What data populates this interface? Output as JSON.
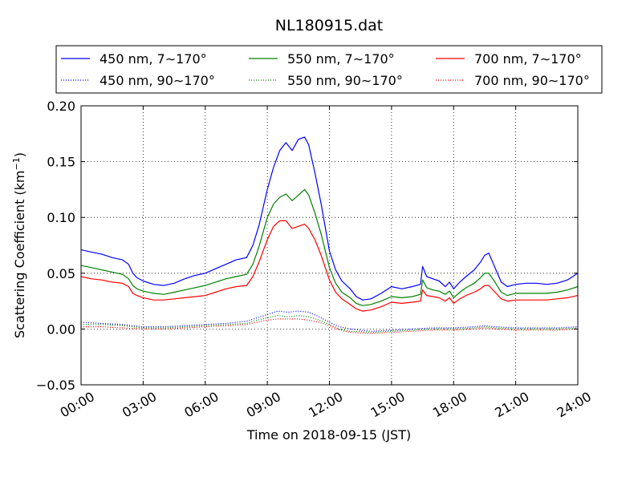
{
  "chart_data": {
    "type": "line",
    "title": "NL180915.dat",
    "xlabel": "Time on 2018-09-15 (JST)",
    "ylabel": "Scattering Coefficient (km",
    "ylabel_sup": "−1",
    "ylabel_close": ")",
    "xlim": [
      0,
      24
    ],
    "ylim": [
      -0.05,
      0.2
    ],
    "x_ticks": [
      {
        "value": 0,
        "label": "00:00"
      },
      {
        "value": 3,
        "label": "03:00"
      },
      {
        "value": 6,
        "label": "06:00"
      },
      {
        "value": 9,
        "label": "09:00"
      },
      {
        "value": 12,
        "label": "12:00"
      },
      {
        "value": 15,
        "label": "15:00"
      },
      {
        "value": 18,
        "label": "18:00"
      },
      {
        "value": 21,
        "label": "21:00"
      },
      {
        "value": 24,
        "label": "24:00"
      }
    ],
    "y_ticks": [
      {
        "value": -0.05,
        "label": "−0.05"
      },
      {
        "value": 0.0,
        "label": "0.00"
      },
      {
        "value": 0.05,
        "label": "0.05"
      },
      {
        "value": 0.1,
        "label": "0.10"
      },
      {
        "value": 0.15,
        "label": "0.15"
      },
      {
        "value": 0.2,
        "label": "0.20"
      }
    ],
    "grid": true,
    "legend_position": "top, above plot",
    "series": [
      {
        "name": "450 nm, 7∼170°",
        "color": "#0000ff",
        "style": "solid",
        "x": [
          0,
          0.5,
          1,
          1.5,
          2,
          2.3,
          2.5,
          2.7,
          3,
          3.5,
          4,
          4.5,
          5,
          5.5,
          6,
          6.5,
          7,
          7.5,
          8,
          8.3,
          8.6,
          9,
          9.3,
          9.6,
          9.9,
          10.2,
          10.5,
          10.8,
          11,
          11.3,
          11.6,
          12,
          12.3,
          12.6,
          13,
          13.3,
          13.6,
          14,
          14.5,
          15,
          15.5,
          16,
          16.4,
          16.5,
          16.7,
          17,
          17.3,
          17.6,
          17.8,
          18,
          18.3,
          18.6,
          19,
          19.3,
          19.5,
          19.7,
          20,
          20.3,
          20.6,
          21,
          21.5,
          22,
          22.5,
          23,
          23.5,
          24
        ],
        "y": [
          0.071,
          0.069,
          0.067,
          0.064,
          0.062,
          0.058,
          0.05,
          0.046,
          0.043,
          0.04,
          0.039,
          0.041,
          0.045,
          0.048,
          0.05,
          0.054,
          0.058,
          0.062,
          0.064,
          0.075,
          0.093,
          0.125,
          0.145,
          0.16,
          0.167,
          0.16,
          0.17,
          0.172,
          0.165,
          0.14,
          0.112,
          0.07,
          0.053,
          0.043,
          0.036,
          0.029,
          0.026,
          0.027,
          0.032,
          0.038,
          0.036,
          0.038,
          0.04,
          0.056,
          0.047,
          0.045,
          0.043,
          0.038,
          0.042,
          0.036,
          0.042,
          0.047,
          0.053,
          0.06,
          0.066,
          0.068,
          0.055,
          0.042,
          0.038,
          0.04,
          0.041,
          0.041,
          0.04,
          0.041,
          0.044,
          0.05
        ]
      },
      {
        "name": "550 nm, 7∼170°",
        "color": "#008000",
        "style": "solid",
        "x": [
          0,
          0.5,
          1,
          1.5,
          2,
          2.3,
          2.5,
          2.7,
          3,
          3.5,
          4,
          4.5,
          5,
          5.5,
          6,
          6.5,
          7,
          7.5,
          8,
          8.3,
          8.6,
          9,
          9.3,
          9.6,
          9.9,
          10.2,
          10.5,
          10.8,
          11,
          11.3,
          11.6,
          12,
          12.3,
          12.6,
          13,
          13.3,
          13.6,
          14,
          14.5,
          15,
          15.5,
          16,
          16.4,
          16.5,
          16.7,
          17,
          17.3,
          17.6,
          17.8,
          18,
          18.3,
          18.6,
          19,
          19.3,
          19.5,
          19.7,
          20,
          20.3,
          20.6,
          21,
          21.5,
          22,
          22.5,
          23,
          23.5,
          24
        ],
        "y": [
          0.057,
          0.055,
          0.053,
          0.051,
          0.049,
          0.045,
          0.039,
          0.036,
          0.034,
          0.032,
          0.031,
          0.033,
          0.035,
          0.037,
          0.039,
          0.042,
          0.045,
          0.047,
          0.049,
          0.058,
          0.074,
          0.1,
          0.112,
          0.118,
          0.121,
          0.115,
          0.12,
          0.125,
          0.12,
          0.104,
          0.085,
          0.055,
          0.041,
          0.033,
          0.028,
          0.023,
          0.021,
          0.022,
          0.025,
          0.029,
          0.028,
          0.029,
          0.031,
          0.044,
          0.037,
          0.035,
          0.034,
          0.031,
          0.034,
          0.028,
          0.033,
          0.037,
          0.041,
          0.046,
          0.05,
          0.05,
          0.042,
          0.033,
          0.03,
          0.032,
          0.032,
          0.032,
          0.032,
          0.033,
          0.035,
          0.038
        ]
      },
      {
        "name": "700 nm, 7∼170°",
        "color": "#ff0000",
        "style": "solid",
        "x": [
          0,
          0.5,
          1,
          1.5,
          2,
          2.3,
          2.5,
          2.7,
          3,
          3.5,
          4,
          4.5,
          5,
          5.5,
          6,
          6.5,
          7,
          7.5,
          8,
          8.3,
          8.6,
          9,
          9.3,
          9.6,
          9.9,
          10.2,
          10.5,
          10.8,
          11,
          11.3,
          11.6,
          12,
          12.3,
          12.6,
          13,
          13.3,
          13.6,
          14,
          14.5,
          15,
          15.5,
          16,
          16.4,
          16.5,
          16.7,
          17,
          17.3,
          17.6,
          17.8,
          18,
          18.3,
          18.6,
          19,
          19.3,
          19.5,
          19.7,
          20,
          20.3,
          20.6,
          21,
          21.5,
          22,
          22.5,
          23,
          23.5,
          24
        ],
        "y": [
          0.047,
          0.045,
          0.044,
          0.042,
          0.041,
          0.038,
          0.032,
          0.03,
          0.028,
          0.026,
          0.026,
          0.027,
          0.028,
          0.029,
          0.03,
          0.033,
          0.036,
          0.038,
          0.039,
          0.047,
          0.06,
          0.08,
          0.092,
          0.097,
          0.097,
          0.09,
          0.092,
          0.094,
          0.09,
          0.08,
          0.066,
          0.044,
          0.033,
          0.027,
          0.022,
          0.018,
          0.016,
          0.017,
          0.02,
          0.024,
          0.023,
          0.024,
          0.025,
          0.035,
          0.03,
          0.029,
          0.028,
          0.025,
          0.028,
          0.023,
          0.027,
          0.03,
          0.033,
          0.036,
          0.039,
          0.039,
          0.033,
          0.027,
          0.025,
          0.026,
          0.026,
          0.026,
          0.026,
          0.027,
          0.028,
          0.03
        ]
      },
      {
        "name": "450 nm, 90∼170°",
        "color": "#0000ff",
        "style": "dotted",
        "x": [
          0,
          1,
          2,
          3,
          4,
          5,
          6,
          7,
          8,
          8.5,
          9,
          9.5,
          10,
          10.5,
          11,
          11.5,
          12,
          12.5,
          13,
          14,
          15,
          16,
          17,
          18,
          19,
          19.5,
          20,
          21,
          22,
          23,
          24
        ],
        "y": [
          0.006,
          0.005,
          0.004,
          0.002,
          0.002,
          0.003,
          0.004,
          0.005,
          0.007,
          0.01,
          0.013,
          0.016,
          0.015,
          0.016,
          0.015,
          0.011,
          0.006,
          0.002,
          0.0,
          -0.002,
          -0.001,
          0.0,
          0.001,
          0.001,
          0.002,
          0.003,
          0.002,
          0.001,
          0.001,
          0.001,
          0.002
        ]
      },
      {
        "name": "550 nm, 90∼170°",
        "color": "#008000",
        "style": "dotted",
        "x": [
          0,
          1,
          2,
          3,
          4,
          5,
          6,
          7,
          8,
          8.5,
          9,
          9.5,
          10,
          10.5,
          11,
          11.5,
          12,
          12.5,
          13,
          14,
          15,
          16,
          17,
          18,
          19,
          19.5,
          20,
          21,
          22,
          23,
          24
        ],
        "y": [
          0.004,
          0.004,
          0.003,
          0.001,
          0.001,
          0.002,
          0.003,
          0.004,
          0.005,
          0.008,
          0.01,
          0.012,
          0.011,
          0.012,
          0.011,
          0.008,
          0.004,
          0.0,
          -0.002,
          -0.003,
          -0.002,
          -0.001,
          0.0,
          0.0,
          0.001,
          0.002,
          0.001,
          0.0,
          0.0,
          0.0,
          0.001
        ]
      },
      {
        "name": "700 nm, 90∼170°",
        "color": "#ff0000",
        "style": "dotted",
        "x": [
          0,
          1,
          2,
          3,
          4,
          5,
          6,
          7,
          8,
          8.5,
          9,
          9.5,
          10,
          10.5,
          11,
          11.5,
          12,
          12.5,
          13,
          14,
          15,
          16,
          17,
          18,
          19,
          19.5,
          20,
          21,
          22,
          23,
          24
        ],
        "y": [
          0.002,
          0.002,
          0.001,
          0.0,
          0.0,
          0.001,
          0.002,
          0.003,
          0.004,
          0.006,
          0.008,
          0.009,
          0.009,
          0.009,
          0.008,
          0.006,
          0.003,
          -0.001,
          -0.003,
          -0.004,
          -0.003,
          -0.002,
          -0.001,
          -0.001,
          0.0,
          0.001,
          0.0,
          -0.001,
          -0.001,
          -0.001,
          0.0
        ]
      }
    ]
  }
}
